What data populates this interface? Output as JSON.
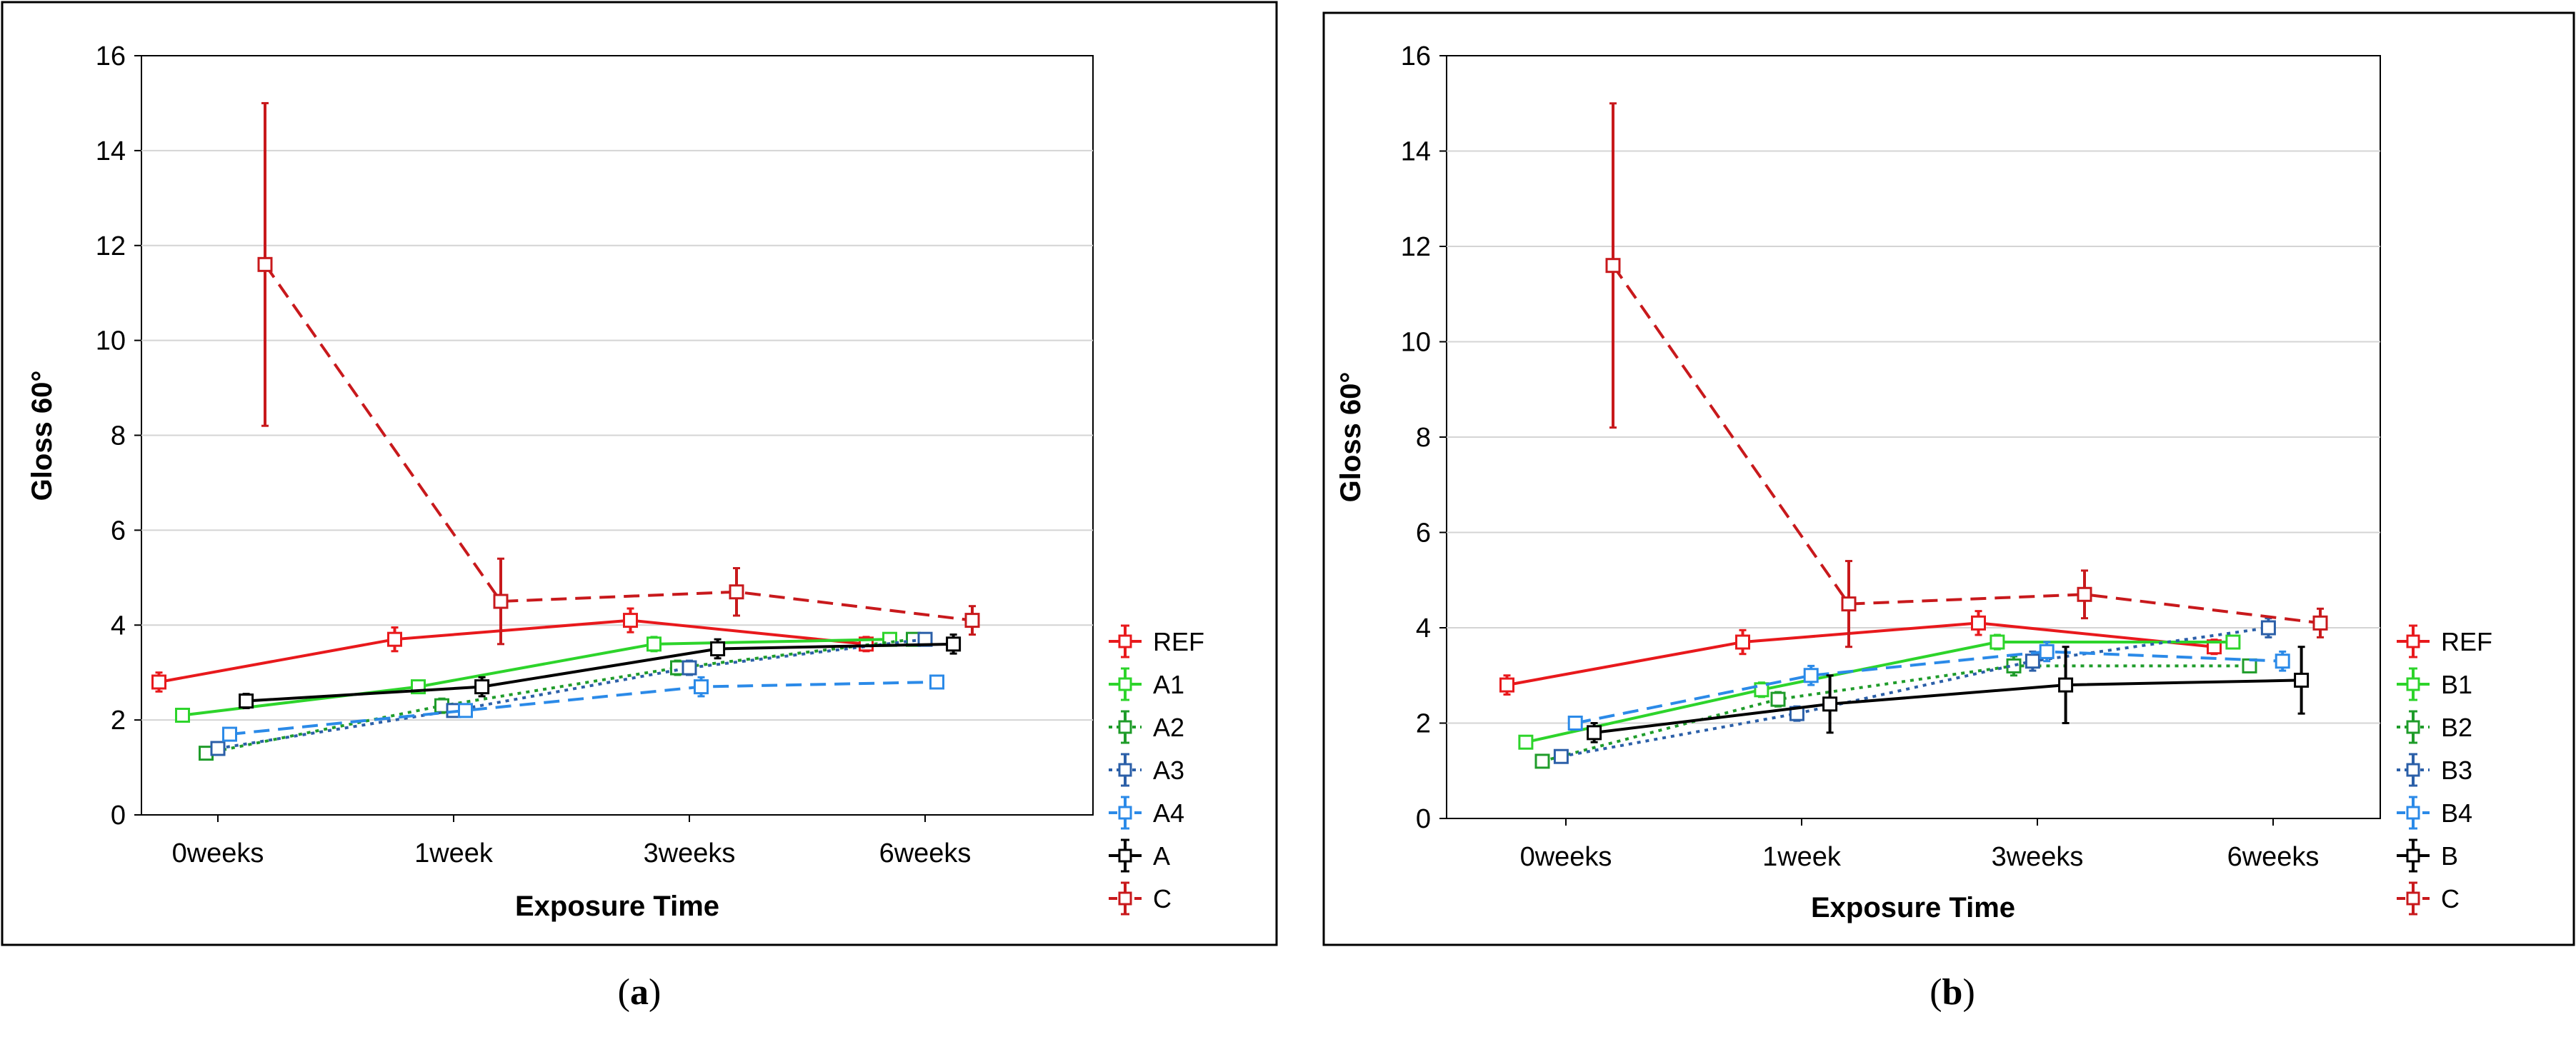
{
  "chart_data": [
    {
      "type": "line",
      "panel_caption_open": "(",
      "panel_caption_letter": "a",
      "panel_caption_close": ")",
      "xlabel": "Exposure Time",
      "ylabel": "Gloss 60°",
      "categories": [
        "0weeks",
        "1week",
        "3weeks",
        "6weeks"
      ],
      "ylim": [
        0,
        16
      ],
      "yticks": [
        0,
        2,
        4,
        6,
        8,
        10,
        12,
        14,
        16
      ],
      "grid": true,
      "legend_position": "right",
      "series": [
        {
          "name": "REF",
          "color": "#e8191c",
          "dash": "solid",
          "offset": -0.25,
          "values": [
            2.8,
            3.7,
            4.1,
            3.6
          ],
          "errors": [
            0.2,
            0.25,
            0.25,
            0.15
          ]
        },
        {
          "name": "A1",
          "color": "#2dd42b",
          "dash": "solid",
          "offset": -0.15,
          "values": [
            2.1,
            2.7,
            3.6,
            3.7
          ],
          "errors": [
            0.1,
            0.1,
            0.15,
            0.1
          ]
        },
        {
          "name": "A2",
          "color": "#1f9c2a",
          "dash": "dotted",
          "offset": -0.05,
          "values": [
            1.3,
            2.3,
            3.1,
            3.7
          ],
          "errors": [
            0.1,
            0.15,
            0.15,
            0.1
          ]
        },
        {
          "name": "A3",
          "color": "#2b5fa8",
          "dash": "dotted",
          "offset": 0.0,
          "values": [
            1.4,
            2.2,
            3.1,
            3.7
          ],
          "errors": [
            0.1,
            0.1,
            0.15,
            0.1
          ]
        },
        {
          "name": "A4",
          "color": "#2b8ae8",
          "dash": "dashed",
          "offset": 0.05,
          "values": [
            1.7,
            2.2,
            2.7,
            2.8
          ],
          "errors": [
            0.1,
            0.1,
            0.2,
            0.1
          ]
        },
        {
          "name": "A",
          "color": "#000000",
          "dash": "solid",
          "offset": 0.12,
          "values": [
            2.4,
            2.7,
            3.5,
            3.6
          ],
          "errors": [
            0.15,
            0.2,
            0.2,
            0.2
          ]
        },
        {
          "name": "C",
          "color": "#c8191c",
          "dash": "dashed",
          "offset": 0.2,
          "values": [
            11.6,
            4.5,
            4.7,
            4.1
          ],
          "errors": [
            3.4,
            0.9,
            0.5,
            0.3
          ]
        }
      ]
    },
    {
      "type": "line",
      "panel_caption_open": "(",
      "panel_caption_letter": "b",
      "panel_caption_close": ")",
      "xlabel": "Exposure Time",
      "ylabel": "Gloss 60°",
      "categories": [
        "0weeks",
        "1week",
        "3weeks",
        "6weeks"
      ],
      "ylim": [
        0,
        16
      ],
      "yticks": [
        0,
        2,
        4,
        6,
        8,
        10,
        12,
        14,
        16
      ],
      "grid": true,
      "legend_position": "right",
      "series": [
        {
          "name": "REF",
          "color": "#e8191c",
          "dash": "solid",
          "offset": -0.25,
          "values": [
            2.8,
            3.7,
            4.1,
            3.6
          ],
          "errors": [
            0.2,
            0.25,
            0.25,
            0.15
          ]
        },
        {
          "name": "B1",
          "color": "#2dd42b",
          "dash": "solid",
          "offset": -0.17,
          "values": [
            1.6,
            2.7,
            3.7,
            3.7
          ],
          "errors": [
            0.1,
            0.15,
            0.15,
            0.1
          ]
        },
        {
          "name": "B2",
          "color": "#1f9c2a",
          "dash": "dotted",
          "offset": -0.1,
          "values": [
            1.2,
            2.5,
            3.2,
            3.2
          ],
          "errors": [
            0.1,
            0.15,
            0.2,
            0.1
          ]
        },
        {
          "name": "B3",
          "color": "#2b5fa8",
          "dash": "dotted",
          "offset": -0.02,
          "values": [
            1.3,
            2.2,
            3.3,
            4.0
          ],
          "errors": [
            0.1,
            0.15,
            0.2,
            0.2
          ]
        },
        {
          "name": "B4",
          "color": "#2b8ae8",
          "dash": "dashed",
          "offset": 0.04,
          "values": [
            2.0,
            3.0,
            3.5,
            3.3
          ],
          "errors": [
            0.1,
            0.2,
            0.2,
            0.2
          ]
        },
        {
          "name": "B",
          "color": "#000000",
          "dash": "solid",
          "offset": 0.12,
          "values": [
            1.8,
            2.4,
            2.8,
            2.9
          ],
          "errors": [
            0.2,
            0.6,
            0.8,
            0.7
          ]
        },
        {
          "name": "C",
          "color": "#c8191c",
          "dash": "dashed",
          "offset": 0.2,
          "values": [
            11.6,
            4.5,
            4.7,
            4.1
          ],
          "errors": [
            3.4,
            0.9,
            0.5,
            0.3
          ]
        }
      ]
    }
  ]
}
